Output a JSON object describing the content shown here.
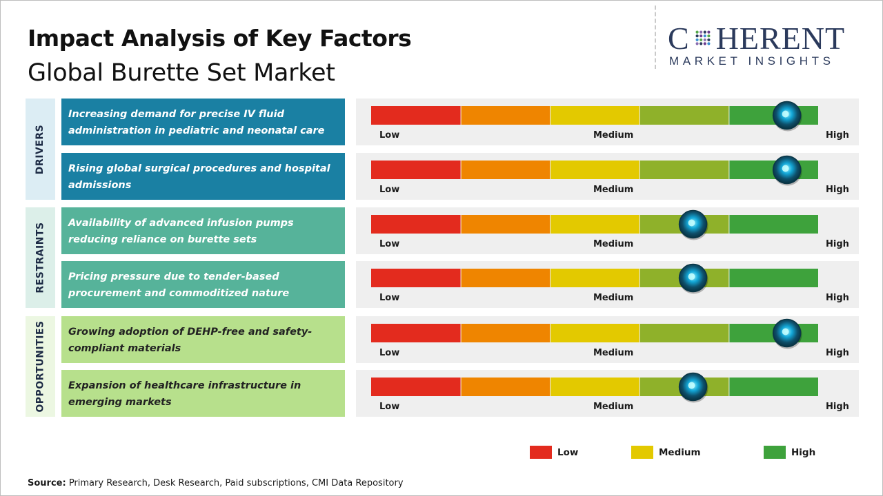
{
  "title": "Impact Analysis of Key Factors",
  "subtitle": "Global Burette Set Market",
  "logo": {
    "word_before": "C",
    "word_after": "HERENT",
    "tagline": "MARKET INSIGHTS"
  },
  "source": {
    "label": "Source:",
    "text": " Primary Research, Desk Research, Paid subscriptions, CMI Data Repository"
  },
  "scale_labels": {
    "low": "Low",
    "medium": "Medium",
    "high": "High"
  },
  "colors": {
    "low": "#e32b1e",
    "low_mid": "#ef8500",
    "medium": "#e3c900",
    "mid_high": "#8fb12a",
    "high": "#3ea23c",
    "drivers_bg": "#1a80a3",
    "restraints_bg": "#56b39a",
    "opportunities_bg": "#b7e08c",
    "drivers_cat_bg": "#dcedf4",
    "restraints_cat_bg": "#dcefe9",
    "opportunities_cat_bg": "#ecf7e2"
  },
  "legend": [
    {
      "label": "Low",
      "color": "#e32b1e"
    },
    {
      "label": "Medium",
      "color": "#e3c900"
    },
    {
      "label": "High",
      "color": "#3ea23c"
    }
  ],
  "chart_data": {
    "type": "table",
    "scale": [
      "Low",
      "Medium",
      "High"
    ],
    "scale_segments": 5,
    "categories": [
      "DRIVERS",
      "RESTRAINTS",
      "OPPORTUNITIES"
    ],
    "factors": [
      {
        "category": "DRIVERS",
        "text": "Increasing demand for precise IV fluid administration in pediatric and neonatal care",
        "impact": 0.93
      },
      {
        "category": "DRIVERS",
        "text": "Rising global surgical procedures and hospital admissions",
        "impact": 0.93
      },
      {
        "category": "RESTRAINTS",
        "text": "Availability of advanced infusion pumps reducing reliance on burette sets",
        "impact": 0.72
      },
      {
        "category": "RESTRAINTS",
        "text": "Pricing pressure due to tender-based procurement and commoditized nature",
        "impact": 0.72
      },
      {
        "category": "OPPORTUNITIES",
        "text": "Growing adoption of DEHP-free and safety-compliant materials",
        "impact": 0.93
      },
      {
        "category": "OPPORTUNITIES",
        "text": "Expansion of healthcare infrastructure in emerging markets",
        "impact": 0.72
      }
    ]
  }
}
